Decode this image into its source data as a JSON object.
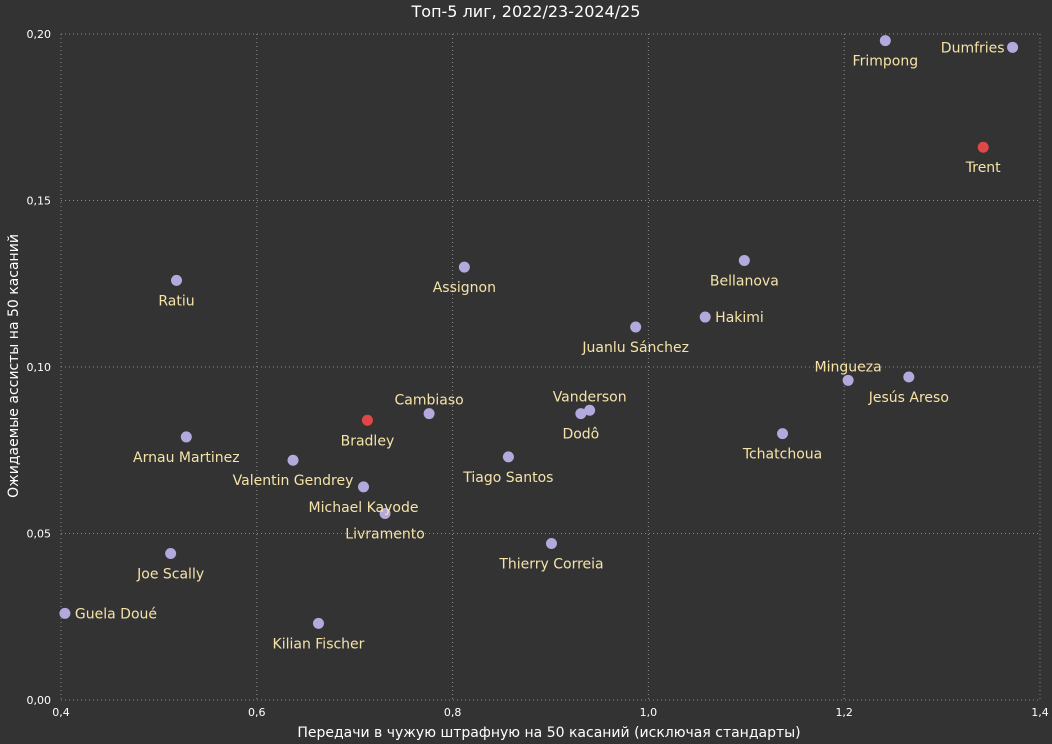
{
  "chart_data": {
    "type": "scatter",
    "title": "Топ-5 лиг, 2022/23-2024/25",
    "xlabel": "Передачи в чужую штрафную на 50 касаний (исключая стандарты)",
    "ylabel": "Ожидаемые ассисты на 50 касаний",
    "xlim": [
      0.4,
      1.4
    ],
    "ylim": [
      0.0,
      0.2
    ],
    "xticks": [
      "0,4",
      "0,6",
      "0,8",
      "1,0",
      "1,2",
      "1,4"
    ],
    "yticks": [
      "0,00",
      "0,05",
      "0,10",
      "0,15",
      "0,20"
    ],
    "grid": true,
    "colors": {
      "background": "#333333",
      "default_point": "#b3a9dc",
      "highlight_point": "#e04848",
      "label": "#f5e3a8"
    },
    "points": [
      {
        "name": "Frimpong",
        "x": 1.242,
        "y": 0.198,
        "highlight": false,
        "label_pos": "below"
      },
      {
        "name": "Dumfries",
        "x": 1.372,
        "y": 0.196,
        "highlight": false,
        "label_pos": "left"
      },
      {
        "name": "Trent",
        "x": 1.342,
        "y": 0.166,
        "highlight": true,
        "label_pos": "below"
      },
      {
        "name": "Bellanova",
        "x": 1.098,
        "y": 0.132,
        "highlight": false,
        "label_pos": "below"
      },
      {
        "name": "Assignon",
        "x": 0.812,
        "y": 0.13,
        "highlight": false,
        "label_pos": "below"
      },
      {
        "name": "Ratiu",
        "x": 0.518,
        "y": 0.126,
        "highlight": false,
        "label_pos": "below"
      },
      {
        "name": "Hakimi",
        "x": 1.058,
        "y": 0.115,
        "highlight": false,
        "label_pos": "right"
      },
      {
        "name": "Juanlu Sánchez",
        "x": 0.987,
        "y": 0.112,
        "highlight": false,
        "label_pos": "below"
      },
      {
        "name": "Mingueza",
        "x": 1.204,
        "y": 0.096,
        "highlight": false,
        "label_pos": "above"
      },
      {
        "name": "Jesús Areso",
        "x": 1.266,
        "y": 0.097,
        "highlight": false,
        "label_pos": "below"
      },
      {
        "name": "Vanderson",
        "x": 0.94,
        "y": 0.087,
        "highlight": false,
        "label_pos": "above"
      },
      {
        "name": "Dodô",
        "x": 0.931,
        "y": 0.086,
        "highlight": false,
        "label_pos": "below"
      },
      {
        "name": "Cambiaso",
        "x": 0.776,
        "y": 0.086,
        "highlight": false,
        "label_pos": "above"
      },
      {
        "name": "Bradley",
        "x": 0.713,
        "y": 0.084,
        "highlight": true,
        "label_pos": "below"
      },
      {
        "name": "Tchatchoua",
        "x": 1.137,
        "y": 0.08,
        "highlight": false,
        "label_pos": "below"
      },
      {
        "name": "Arnau Martinez",
        "x": 0.528,
        "y": 0.079,
        "highlight": false,
        "label_pos": "below"
      },
      {
        "name": "Valentin Gendrey",
        "x": 0.637,
        "y": 0.072,
        "highlight": false,
        "label_pos": "below"
      },
      {
        "name": "Tiago Santos",
        "x": 0.857,
        "y": 0.073,
        "highlight": false,
        "label_pos": "below"
      },
      {
        "name": "Michael Kayode",
        "x": 0.709,
        "y": 0.064,
        "highlight": false,
        "label_pos": "below"
      },
      {
        "name": "Livramento",
        "x": 0.731,
        "y": 0.056,
        "highlight": false,
        "label_pos": "below"
      },
      {
        "name": "Thierry Correia",
        "x": 0.901,
        "y": 0.047,
        "highlight": false,
        "label_pos": "below"
      },
      {
        "name": "Joe Scally",
        "x": 0.512,
        "y": 0.044,
        "highlight": false,
        "label_pos": "below"
      },
      {
        "name": "Guela Doué",
        "x": 0.404,
        "y": 0.026,
        "highlight": false,
        "label_pos": "right"
      },
      {
        "name": "Kilian Fischer",
        "x": 0.663,
        "y": 0.023,
        "highlight": false,
        "label_pos": "below"
      }
    ]
  }
}
